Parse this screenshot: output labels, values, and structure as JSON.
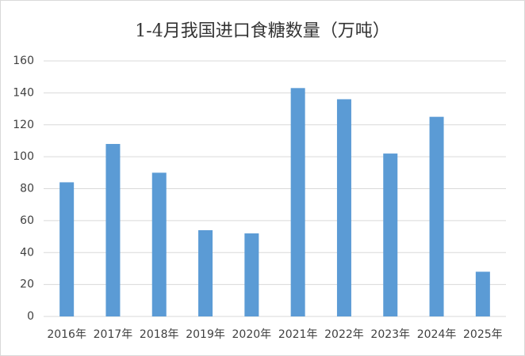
{
  "chart_data": {
    "type": "bar",
    "title": "1-4月我国进口食糖数量（万吨）",
    "categories": [
      "2016年",
      "2017年",
      "2018年",
      "2019年",
      "2020年",
      "2021年",
      "2022年",
      "2023年",
      "2024年",
      "2025年"
    ],
    "values": [
      84,
      108,
      90,
      54,
      52,
      143,
      136,
      102,
      125,
      28
    ],
    "color": "#5b9bd5",
    "ylim": [
      0,
      160
    ],
    "yticks": [
      0,
      20,
      40,
      60,
      80,
      100,
      120,
      140,
      160
    ],
    "grid": true
  }
}
